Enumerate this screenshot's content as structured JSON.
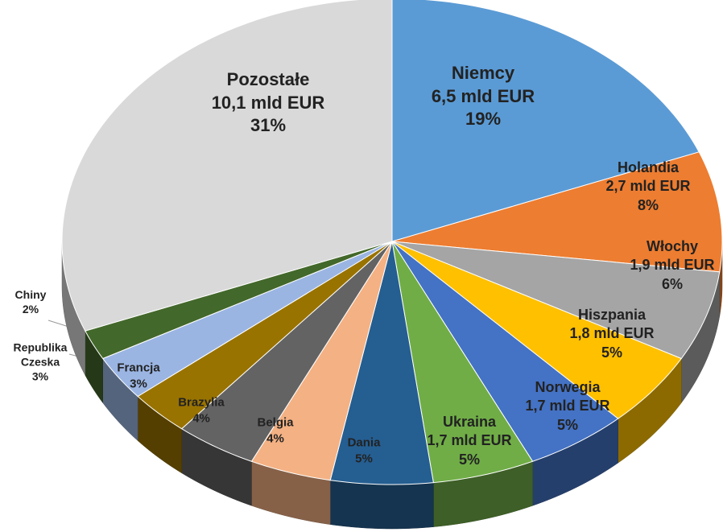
{
  "chart_data": {
    "type": "pie3d",
    "categories": [
      "Niemcy",
      "Holandia",
      "Włochy",
      "Hiszpania",
      "Norwegia",
      "Ukraina",
      "Dania",
      "Belgia",
      "Brazylia",
      "Francja",
      "Republika Czeska",
      "Chiny",
      "Pozostałe"
    ],
    "values": [
      19,
      8,
      6,
      5,
      5,
      5,
      5,
      4,
      4,
      3,
      3,
      2,
      31
    ],
    "value_labels": [
      "19%",
      "8%",
      "6%",
      "5%",
      "5%",
      "5%",
      "5%",
      "4%",
      "4%",
      "3%",
      "3%",
      "2%",
      "31%"
    ],
    "amount_labels": [
      "6,5 mld EUR",
      "2,7 mld EUR",
      "1,9 mld EUR",
      "1,8 mld EUR",
      "1,7 mld EUR",
      "1,7 mld EUR",
      null,
      null,
      null,
      null,
      null,
      null,
      "10,1 mld EUR"
    ],
    "colors": [
      "#5b9bd5",
      "#ed7d31",
      "#a5a5a5",
      "#ffc000",
      "#4472c4",
      "#70ad47",
      "#255e91",
      "#f4b183",
      "#636363",
      "#997300",
      "#9bb5e3",
      "#43682b",
      "#d9d9d9"
    ]
  }
}
